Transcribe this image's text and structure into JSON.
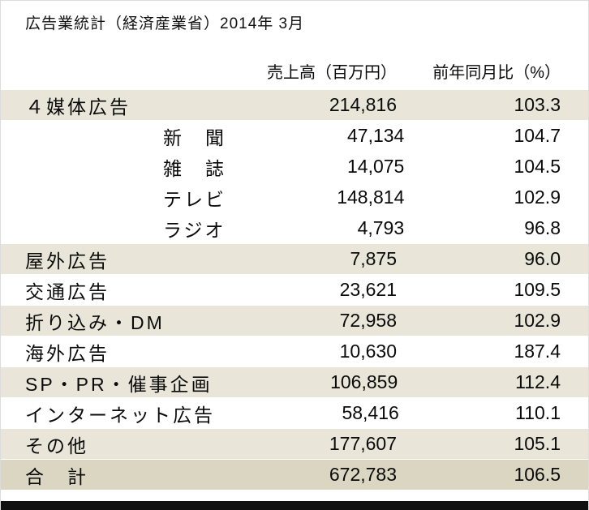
{
  "chart_data": {
    "type": "table",
    "title": "広告業統計（経済産業省）2014年 3月",
    "columns": [
      "売上高（百万円）",
      "前年同月比（%）"
    ],
    "rows": [
      {
        "label": "４媒体広告",
        "group": "main",
        "sales": "214,816",
        "yoy": "103.3"
      },
      {
        "label": "新　聞",
        "group": "sub",
        "sales": "47,134",
        "yoy": "104.7"
      },
      {
        "label": "雑　誌",
        "group": "sub",
        "sales": "14,075",
        "yoy": "104.5"
      },
      {
        "label": "テレビ",
        "group": "sub",
        "sales": "148,814",
        "yoy": "102.9"
      },
      {
        "label": "ラジオ",
        "group": "sub",
        "sales": "4,793",
        "yoy": "96.8"
      },
      {
        "label": "屋外広告",
        "group": "main",
        "sales": "7,875",
        "yoy": "96.0"
      },
      {
        "label": "交通広告",
        "group": "main",
        "sales": "23,621",
        "yoy": "109.5"
      },
      {
        "label": "折り込み・DM",
        "group": "main",
        "sales": "72,958",
        "yoy": "102.9"
      },
      {
        "label": "海外広告",
        "group": "main",
        "sales": "10,630",
        "yoy": "187.4"
      },
      {
        "label": "SP・PR・催事企画",
        "group": "main",
        "sales": "106,859",
        "yoy": "112.4"
      },
      {
        "label": "インターネット広告",
        "group": "main",
        "sales": "58,416",
        "yoy": "110.1"
      },
      {
        "label": "その他",
        "group": "main",
        "sales": "177,607",
        "yoy": "105.1"
      },
      {
        "label": "合　計",
        "group": "total",
        "sales": "672,783",
        "yoy": "106.5"
      }
    ]
  },
  "colors": {
    "row_shade": "#e9e5d8",
    "total_row_shade": "#dbd6c1",
    "bottom_bar": "#111111",
    "text": "#0a0a0a"
  }
}
